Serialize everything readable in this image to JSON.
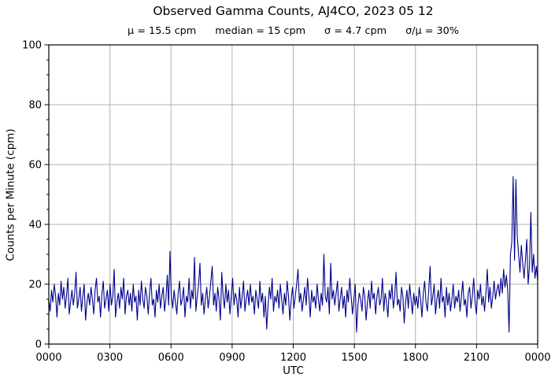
{
  "chart_data": {
    "type": "line",
    "title": "Observed Gamma Counts, AJ4CO, 2023 05 12",
    "stats": {
      "mu": "μ = 15.5 cpm",
      "median": "median = 15 cpm",
      "sigma": "σ = 4.7 cpm",
      "sigma_over_mu": "σ/μ = 30%"
    },
    "xlabel": "UTC",
    "ylabel": "Counts per Minute (cpm)",
    "x_tick_labels": [
      "0000",
      "0300",
      "0600",
      "0900",
      "1200",
      "1500",
      "1800",
      "2100",
      "0000"
    ],
    "y_ticks": [
      0,
      20,
      40,
      60,
      80,
      100
    ],
    "y_minor_step": 5,
    "ylim": [
      0,
      100
    ],
    "x_range_minutes": [
      0,
      1440
    ],
    "sample_interval_minutes": 4,
    "grid": true,
    "grid_color": "#b0b0b0",
    "axis_color": "#000000",
    "legend": "none",
    "series": [
      {
        "name": "observed gamma counts (cpm)",
        "color": "#00008B",
        "values": [
          15,
          11,
          18,
          14,
          20,
          16,
          9,
          17,
          13,
          21,
          15,
          19,
          12,
          16,
          22,
          10,
          14,
          18,
          13,
          17,
          24,
          12,
          15,
          19,
          11,
          16,
          20,
          8,
          14,
          17,
          13,
          19,
          15,
          10,
          18,
          22,
          14,
          16,
          9,
          17,
          21,
          12,
          15,
          18,
          11,
          20,
          13,
          16,
          25,
          9,
          14,
          17,
          12,
          19,
          15,
          22,
          10,
          16,
          18,
          13,
          17,
          11,
          20,
          14,
          16,
          8,
          18,
          13,
          21,
          15,
          12,
          19,
          16,
          10,
          17,
          22,
          13,
          15,
          9,
          18,
          14,
          20,
          12,
          16,
          19,
          11,
          15,
          23,
          13,
          31,
          16,
          12,
          18,
          14,
          10,
          17,
          21,
          13,
          15,
          19,
          9,
          16,
          14,
          22,
          12,
          18,
          15,
          29,
          11,
          16,
          20,
          27,
          13,
          17,
          10,
          15,
          19,
          12,
          16,
          21,
          26,
          13,
          17,
          11,
          19,
          15,
          8,
          24,
          16,
          12,
          20,
          14,
          18,
          10,
          16,
          22,
          13,
          17,
          15,
          9,
          19,
          12,
          16,
          21,
          11,
          15,
          18,
          13,
          20,
          14,
          16,
          10,
          18,
          15,
          12,
          21,
          14,
          17,
          9,
          16,
          5,
          13,
          19,
          15,
          22,
          11,
          16,
          14,
          18,
          12,
          20,
          15,
          10,
          17,
          13,
          21,
          16,
          8,
          15,
          19,
          12,
          16,
          20,
          25,
          14,
          17,
          11,
          15,
          19,
          13,
          22,
          16,
          9,
          18,
          14,
          16,
          12,
          20,
          15,
          11,
          17,
          13,
          30,
          16,
          14,
          19,
          10,
          27,
          15,
          18,
          13,
          17,
          21,
          11,
          15,
          19,
          12,
          16,
          9,
          18,
          14,
          22,
          16,
          10,
          15,
          20,
          4,
          13,
          17,
          15,
          11,
          19,
          16,
          8,
          14,
          18,
          12,
          21,
          15,
          17,
          10,
          16,
          19,
          13,
          15,
          22,
          11,
          17,
          14,
          9,
          18,
          15,
          20,
          12,
          16,
          24,
          13,
          15,
          11,
          19,
          16,
          7,
          14,
          18,
          12,
          20,
          15,
          10,
          17,
          13,
          16,
          12,
          19,
          15,
          9,
          17,
          21,
          14,
          11,
          18,
          26,
          13,
          16,
          20,
          10,
          15,
          18,
          12,
          22,
          14,
          16,
          9,
          19,
          13,
          17,
          11,
          15,
          20,
          12,
          16,
          14,
          18,
          11,
          16,
          21,
          13,
          15,
          9,
          17,
          19,
          12,
          16,
          22,
          14,
          10,
          18,
          15,
          20,
          13,
          16,
          11,
          17,
          25,
          14,
          19,
          12,
          16,
          21,
          15,
          18,
          20,
          16,
          22,
          17,
          25,
          19,
          23,
          18,
          4,
          30,
          34,
          56,
          28,
          55,
          36,
          30,
          24,
          33,
          27,
          22,
          28,
          35,
          20,
          26,
          44,
          24,
          30,
          22,
          26,
          21
        ]
      }
    ]
  }
}
